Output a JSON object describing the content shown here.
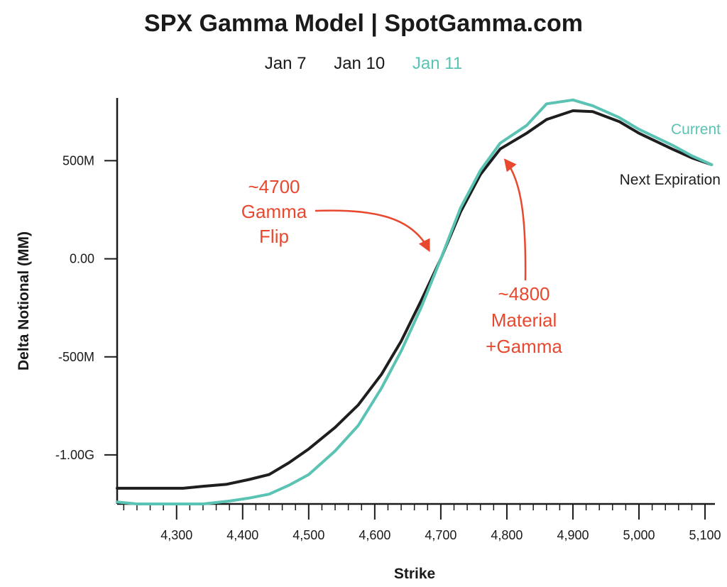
{
  "header": {
    "title": "SPX Gamma Model | SpotGamma.com",
    "date_tabs": [
      {
        "label": "Jan 7",
        "active": false
      },
      {
        "label": "Jan 10",
        "active": false
      },
      {
        "label": "Jan 11",
        "active": true
      }
    ]
  },
  "colors": {
    "current": "#5bc3b3",
    "next_expiration": "#1e1e1e",
    "annotation": "#e8482e",
    "axis": "#1a1a1a"
  },
  "chart_data": {
    "type": "line",
    "xlabel": "Strike",
    "ylabel": "Delta Notional (MM)",
    "xlim": [
      4210,
      5115
    ],
    "ylim": [
      -1250,
      820
    ],
    "x_ticks": [
      4300,
      4400,
      4500,
      4600,
      4700,
      4800,
      4900,
      5000,
      5100
    ],
    "x_tick_labels": [
      "4,300",
      "4,400",
      "4,500",
      "4,600",
      "4,700",
      "4,800",
      "4,900",
      "5,000",
      "5,100"
    ],
    "y_ticks": [
      500,
      0,
      -500,
      -1000
    ],
    "y_tick_labels": [
      "500M",
      "0.00",
      "-500M",
      "-1.00G"
    ],
    "series": [
      {
        "name": "Current",
        "color": "#5bc3b3",
        "x": [
          4210,
          4240,
          4310,
          4340,
          4380,
          4410,
          4440,
          4470,
          4500,
          4540,
          4575,
          4610,
          4640,
          4670,
          4700,
          4730,
          4760,
          4790,
          4830,
          4860,
          4900,
          4930,
          4970,
          5000,
          5050,
          5080,
          5110
        ],
        "y": [
          -1240,
          -1250,
          -1250,
          -1250,
          -1235,
          -1220,
          -1200,
          -1155,
          -1100,
          -980,
          -850,
          -660,
          -470,
          -250,
          0,
          260,
          450,
          590,
          680,
          790,
          810,
          780,
          720,
          660,
          580,
          525,
          480
        ]
      },
      {
        "name": "Next Expiration",
        "color": "#1e1e1e",
        "x": [
          4210,
          4240,
          4310,
          4340,
          4375,
          4410,
          4440,
          4470,
          4500,
          4540,
          4575,
          4610,
          4640,
          4670,
          4700,
          4730,
          4760,
          4790,
          4830,
          4860,
          4900,
          4930,
          4970,
          5000,
          5050,
          5080,
          5110
        ],
        "y": [
          -1170,
          -1170,
          -1170,
          -1160,
          -1150,
          -1125,
          -1100,
          -1040,
          -970,
          -860,
          -745,
          -590,
          -420,
          -215,
          0,
          240,
          430,
          560,
          640,
          710,
          755,
          750,
          700,
          640,
          560,
          515,
          480
        ]
      }
    ],
    "annotations": [
      {
        "text": [
          "~4700",
          "Gamma",
          "Flip"
        ],
        "target_x": 4697,
        "target_y": 30
      },
      {
        "text": [
          "~4800",
          "Material",
          "+Gamma"
        ],
        "target_x": 4808,
        "target_y": 495
      }
    ]
  }
}
